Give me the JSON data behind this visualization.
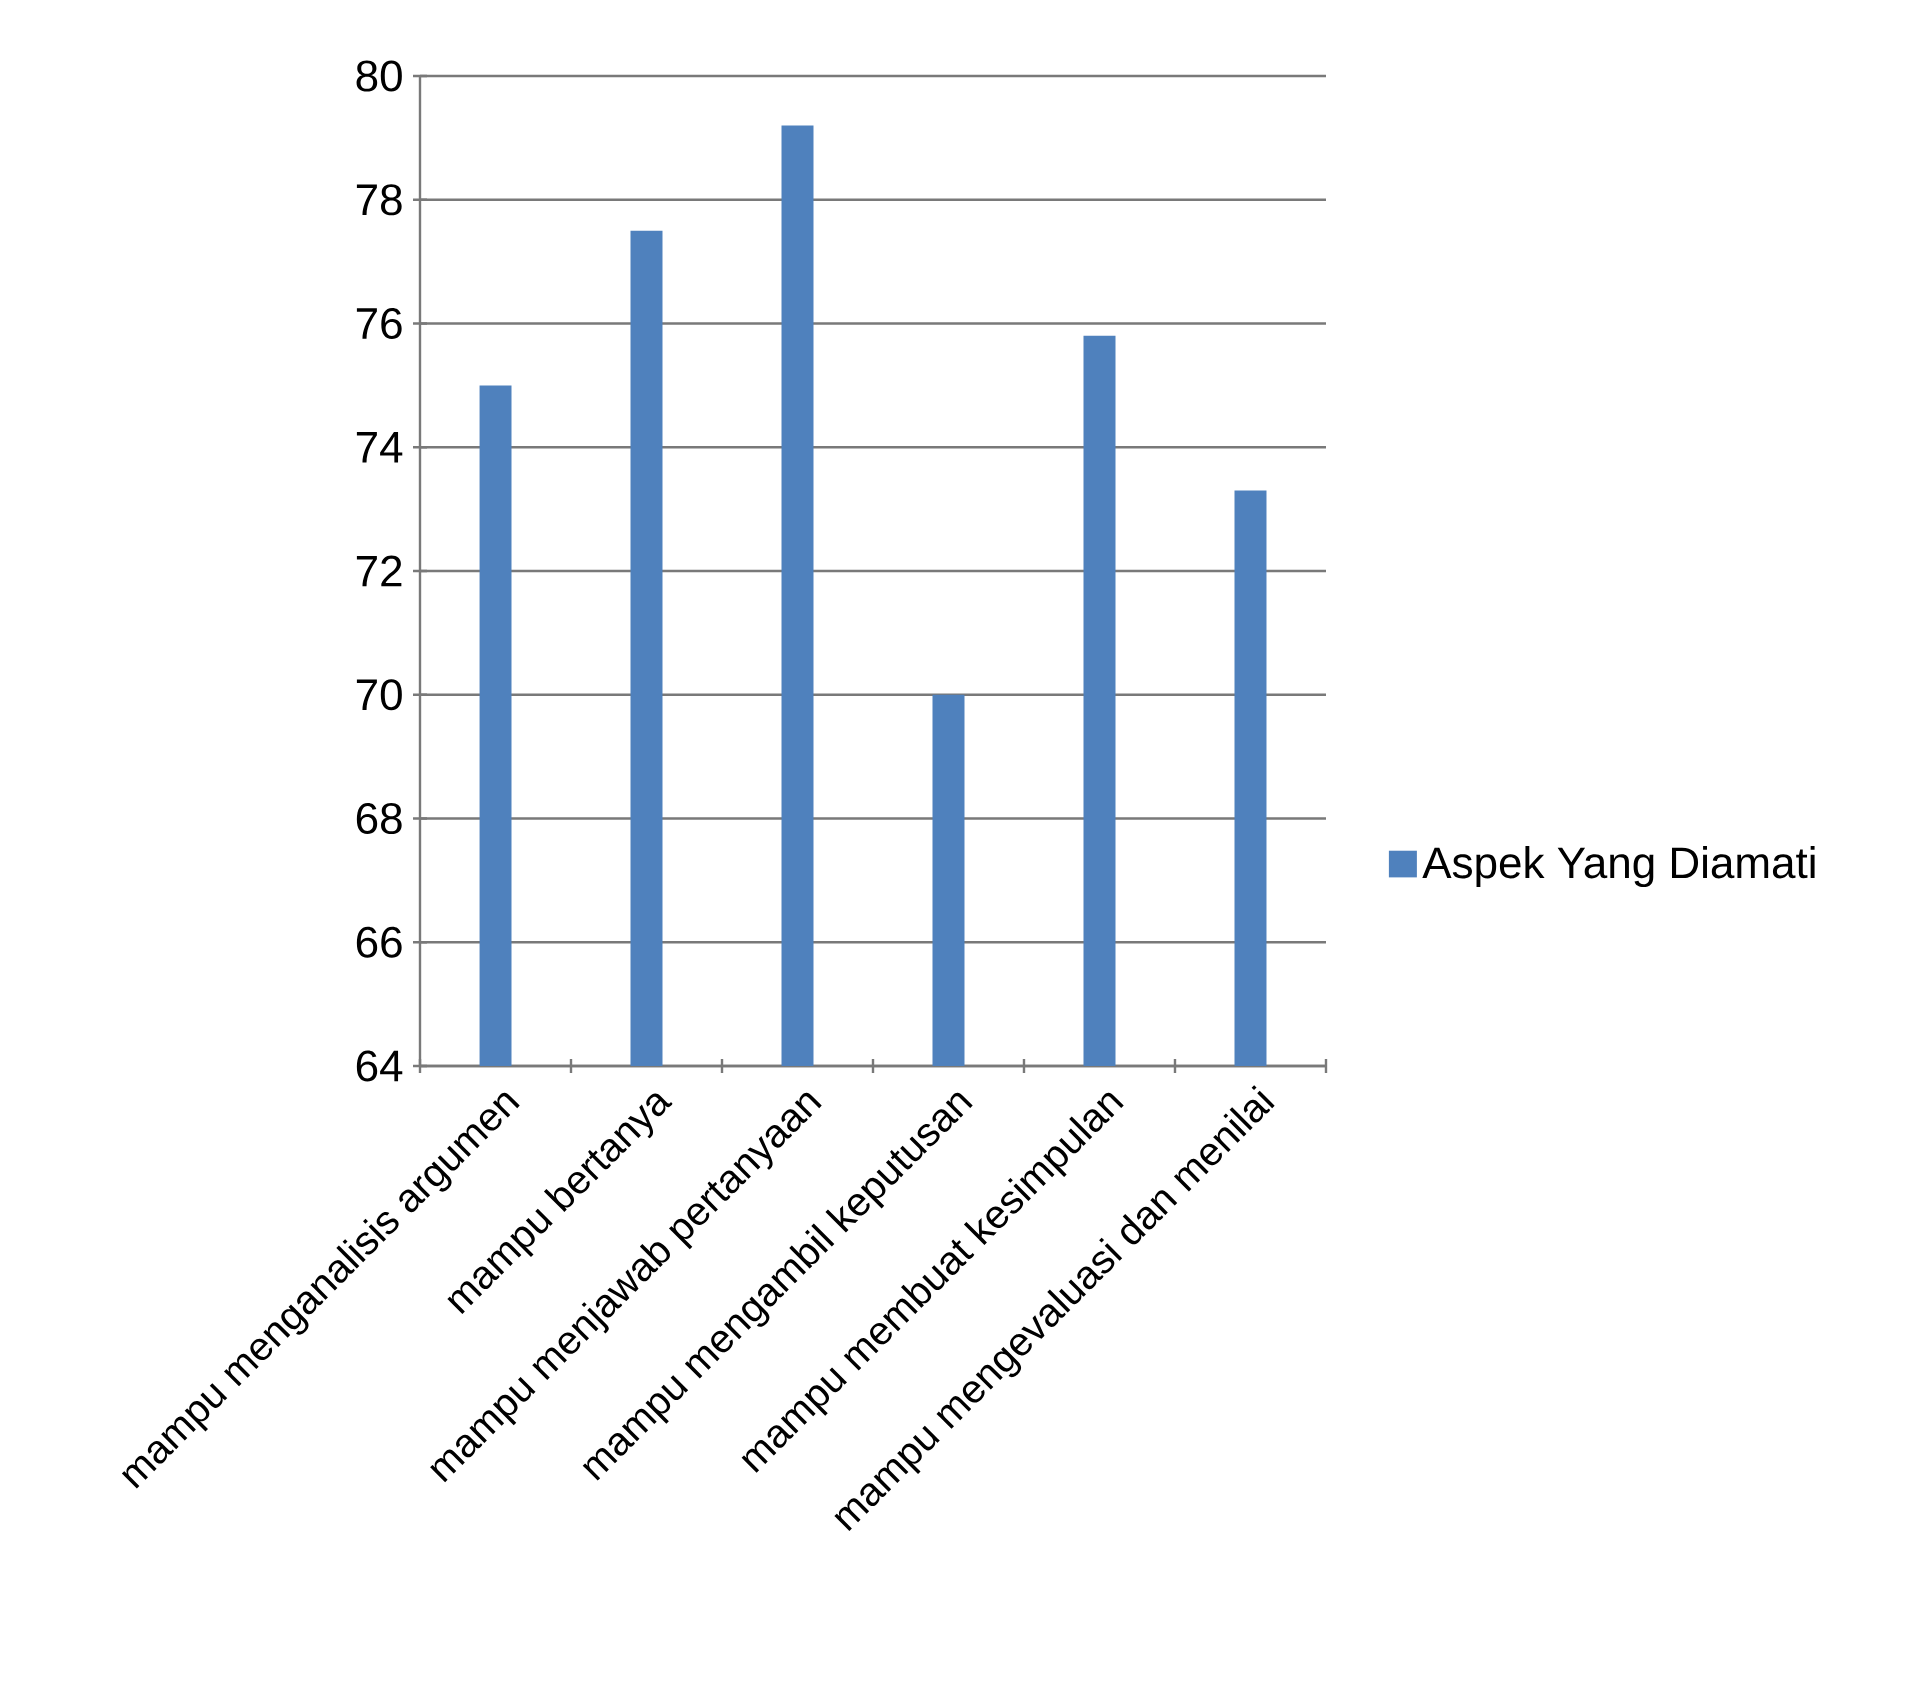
{
  "chart_data": {
    "type": "bar",
    "categories": [
      "mampu menganalisis argumen",
      "mampu bertanya",
      "mampu menjawab pertanyaan",
      "mampu mengambil keputusan",
      "mampu membuat kesimpulan",
      "mampu mengevaluasi dan menilai"
    ],
    "series": [
      {
        "name": "Aspek Yang Diamati",
        "color": "#4f81bd",
        "values": [
          75,
          77.5,
          79.2,
          70,
          75.8,
          73.3
        ]
      }
    ],
    "ylim": [
      64,
      80
    ],
    "yticks": [
      64,
      66,
      68,
      70,
      72,
      74,
      76,
      78,
      80
    ],
    "grid": "y",
    "legend": "right"
  }
}
